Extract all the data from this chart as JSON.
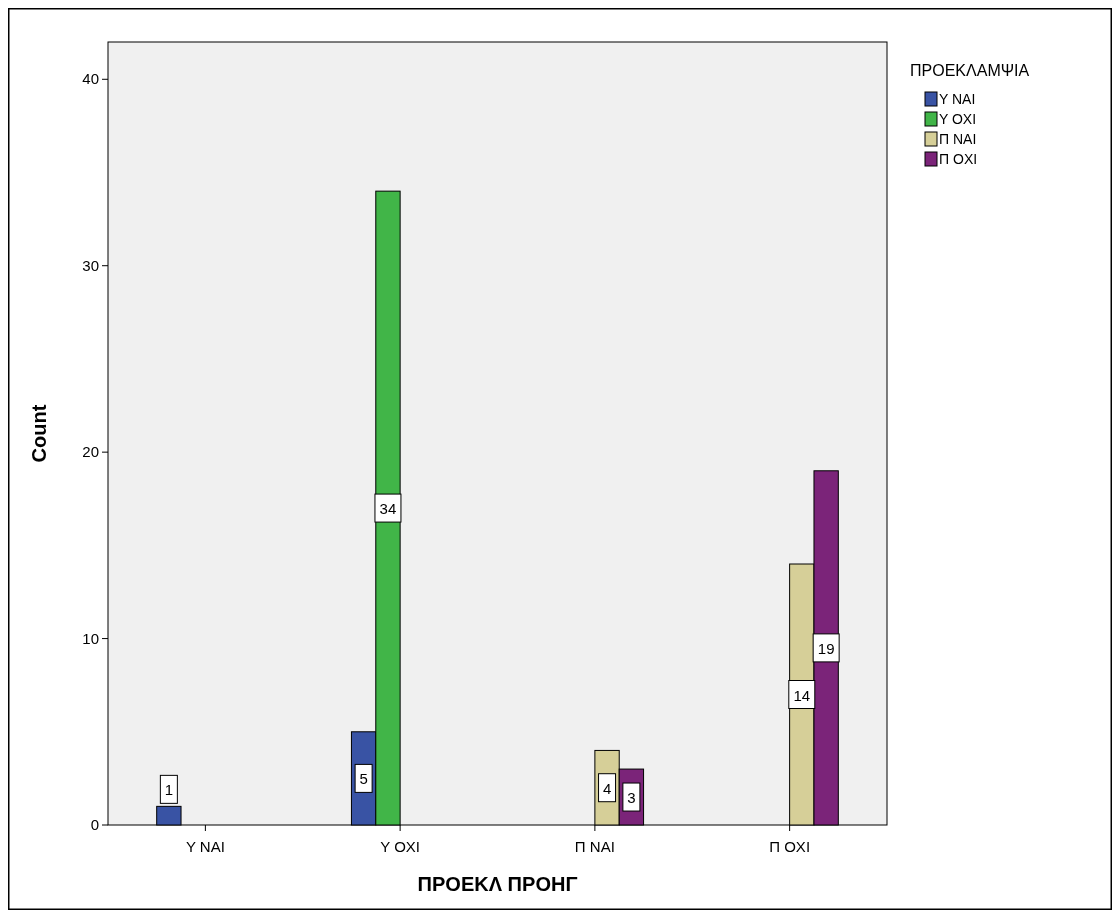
{
  "chart_data": {
    "type": "bar",
    "xlabel": "ΠΡΟΕΚΛ ΠΡΟΗΓ",
    "ylabel": "Count",
    "legend_title": "ΠΡΟΕΚΛΑΜΨΙΑ",
    "categories": [
      "Υ ΝΑΙ",
      "Υ ΟΧΙ",
      "Π ΝΑΙ",
      "Π ΟΧΙ"
    ],
    "series": [
      {
        "name": "Υ ΝΑΙ",
        "color": "#3953a4",
        "values": [
          1,
          5,
          null,
          null
        ]
      },
      {
        "name": "Υ ΟΧΙ",
        "color": "#41b548",
        "values": [
          null,
          34,
          null,
          null
        ]
      },
      {
        "name": "Π ΝΑΙ",
        "color": "#d6cf98",
        "values": [
          null,
          null,
          4,
          14
        ]
      },
      {
        "name": "Π ΟΧΙ",
        "color": "#7b2479",
        "values": [
          null,
          null,
          3,
          19
        ]
      }
    ],
    "ylim": [
      0,
      42
    ],
    "yticks": [
      0,
      10,
      20,
      30,
      40
    ],
    "grid": false,
    "legend": "top right",
    "data_labels": true
  }
}
